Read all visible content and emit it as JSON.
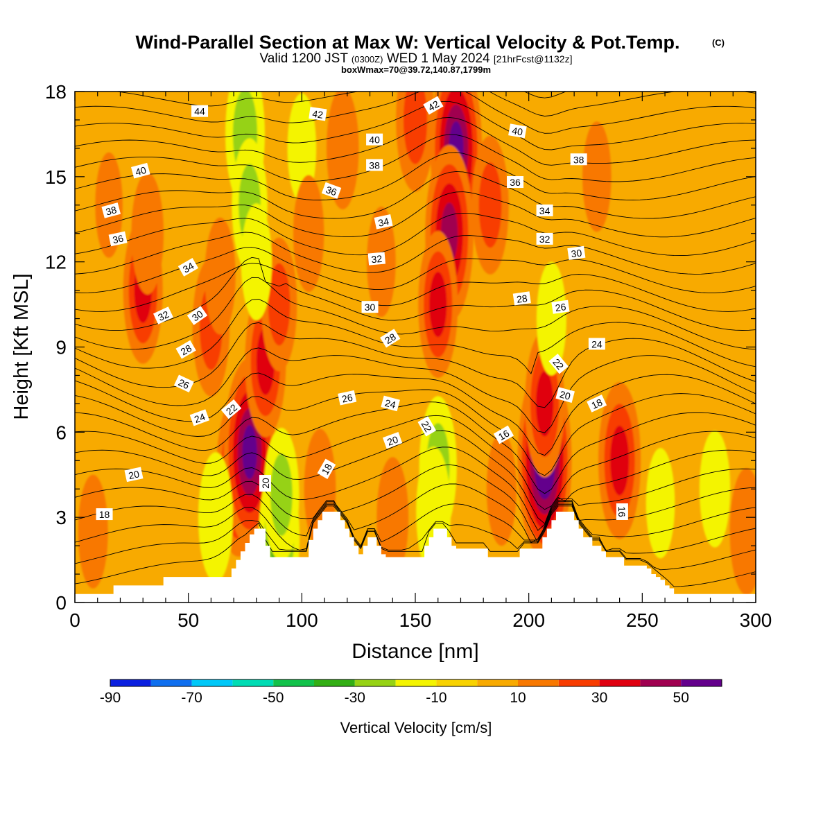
{
  "title": "Wind-Parallel Section at Max W: Vertical Velocity & Pot.Temp.",
  "copyright_mark": "(C)",
  "subtitle_parts": {
    "valid_prefix": "Valid 1200 JST",
    "utc": "(0300Z)",
    "date": "WED 1 May 2024",
    "forecast": "[21hrFcst@1132z]"
  },
  "subtitle2": "boxWmax=70@39.72,140.87,1799m",
  "chart_data": {
    "type": "heatmap",
    "xlabel": "Distance [nm]",
    "ylabel": "Height [Kft MSL]",
    "xlim": [
      0,
      300
    ],
    "ylim": [
      0,
      18
    ],
    "x_ticks": [
      0,
      50,
      100,
      150,
      200,
      250,
      300
    ],
    "y_ticks": [
      0,
      3,
      6,
      9,
      12,
      15,
      18
    ],
    "colorbar": {
      "label": "Vertical Velocity [cm/s]",
      "bounds": [
        -90,
        -80,
        -70,
        -60,
        -50,
        -40,
        -30,
        -20,
        -10,
        0,
        10,
        20,
        30,
        40,
        50,
        60
      ],
      "tick_labels": [
        "-90",
        "-70",
        "-50",
        "-30",
        "-10",
        "10",
        "30",
        "50"
      ],
      "tick_values": [
        -90,
        -70,
        -50,
        -30,
        -10,
        10,
        30,
        50
      ],
      "colors": [
        "#0b1fe0",
        "#0f6fef",
        "#00c8f8",
        "#00dcb4",
        "#12c24a",
        "#32ae14",
        "#96d214",
        "#f4f400",
        "#f8d200",
        "#f8aa00",
        "#f87800",
        "#f83c00",
        "#e00010",
        "#a00050",
        "#64008c"
      ]
    },
    "vertical_velocity_cells": [
      {
        "x": 8,
        "y": 2.5,
        "w": 10
      },
      {
        "x": 30,
        "y": 11,
        "w": 30
      },
      {
        "x": 32,
        "y": 13,
        "w": 15
      },
      {
        "x": 60,
        "y": 9.7,
        "w": 25
      },
      {
        "x": 64,
        "y": 11.5,
        "w": 12
      },
      {
        "x": 72,
        "y": 4.5,
        "w": 40
      },
      {
        "x": 77,
        "y": 5.3,
        "w": 55
      },
      {
        "x": 84,
        "y": 8.5,
        "w": 33
      },
      {
        "x": 90,
        "y": 10.5,
        "w": 22
      },
      {
        "x": 62,
        "y": 3,
        "w": -20
      },
      {
        "x": 90,
        "y": 2.3,
        "w": -33
      },
      {
        "x": 91,
        "y": 3.8,
        "w": -22
      },
      {
        "x": 75,
        "y": 16.5,
        "w": -30
      },
      {
        "x": 77,
        "y": 14,
        "w": -22
      },
      {
        "x": 80,
        "y": 12,
        "w": -12
      },
      {
        "x": 100,
        "y": 16,
        "w": -8
      },
      {
        "x": 103,
        "y": 13,
        "w": 12
      },
      {
        "x": 108,
        "y": 4,
        "w": 14
      },
      {
        "x": 118,
        "y": 16,
        "w": 15
      },
      {
        "x": 135,
        "y": 12,
        "w": 8
      },
      {
        "x": 150,
        "y": 17,
        "w": 28
      },
      {
        "x": 140,
        "y": 3,
        "w": 14
      },
      {
        "x": 160,
        "y": 4.8,
        "w": -26
      },
      {
        "x": 158,
        "y": 3.2,
        "w": -20
      },
      {
        "x": 168,
        "y": 16,
        "w": 55
      },
      {
        "x": 165,
        "y": 13,
        "w": 48
      },
      {
        "x": 160,
        "y": 10.5,
        "w": 30
      },
      {
        "x": 183,
        "y": 14,
        "w": 25
      },
      {
        "x": 188,
        "y": 4,
        "w": 10
      },
      {
        "x": 207,
        "y": 5,
        "w": 60
      },
      {
        "x": 207,
        "y": 7,
        "w": 30
      },
      {
        "x": 210,
        "y": 10,
        "w": -10
      },
      {
        "x": 240,
        "y": 5,
        "w": 36
      },
      {
        "x": 230,
        "y": 15,
        "w": 8
      },
      {
        "x": 258,
        "y": 3.5,
        "w": -8
      },
      {
        "x": 282,
        "y": 4,
        "w": -12
      },
      {
        "x": 296,
        "y": 2.5,
        "w": 18
      },
      {
        "x": 15,
        "y": 14,
        "w": 5
      }
    ],
    "terrain": {
      "x": [
        0,
        15,
        17,
        37,
        39,
        69,
        71,
        73,
        75,
        77,
        79,
        82,
        84,
        86,
        101,
        103,
        105,
        107,
        109,
        115,
        117,
        119,
        121,
        123,
        125,
        127,
        129,
        131,
        133,
        135,
        137,
        139,
        141,
        143,
        145,
        152,
        154,
        156,
        158,
        160,
        162,
        164,
        166,
        168,
        170,
        172,
        176,
        178,
        180,
        182,
        184,
        186,
        188,
        190,
        192,
        194,
        196,
        198,
        200,
        202,
        206,
        208,
        210,
        212,
        214,
        216,
        218,
        220,
        222,
        224,
        226,
        228,
        230,
        232,
        234,
        236,
        240,
        242,
        244,
        246,
        248,
        250,
        252,
        254,
        256,
        258,
        260,
        262,
        264,
        266,
        268,
        300
      ],
      "y": [
        0.3,
        0.3,
        0.6,
        0.6,
        0.9,
        1.2,
        1.5,
        1.8,
        2.1,
        2.4,
        2.6,
        2.6,
        2.0,
        1.6,
        1.6,
        2.2,
        2.6,
        2.9,
        3.2,
        3.2,
        2.9,
        2.6,
        2.3,
        2.0,
        1.7,
        2.0,
        2.3,
        2.3,
        2.0,
        1.7,
        1.6,
        1.6,
        1.6,
        1.6,
        1.6,
        1.6,
        2.0,
        2.3,
        2.6,
        2.6,
        2.6,
        2.3,
        2.0,
        1.9,
        1.9,
        1.9,
        1.9,
        1.9,
        1.9,
        1.6,
        1.6,
        1.6,
        1.6,
        1.6,
        1.6,
        1.6,
        1.9,
        1.9,
        1.9,
        1.9,
        2.3,
        2.6,
        2.9,
        3.2,
        3.2,
        3.2,
        3.2,
        2.9,
        2.6,
        2.3,
        2.3,
        2.0,
        2.0,
        1.8,
        1.6,
        1.6,
        1.6,
        1.3,
        1.3,
        1.3,
        1.3,
        1.3,
        1.2,
        1.0,
        0.9,
        0.8,
        0.6,
        0.5,
        0.3,
        0.3,
        0.3,
        0.3
      ]
    },
    "theta_labels": [
      {
        "x": 55,
        "y": 17.3,
        "t": "44",
        "a": 0
      },
      {
        "x": 107,
        "y": 17.2,
        "t": "42",
        "a": 8
      },
      {
        "x": 158,
        "y": 17.5,
        "t": "42",
        "a": -30
      },
      {
        "x": 132,
        "y": 16.3,
        "t": "40",
        "a": 0
      },
      {
        "x": 195,
        "y": 16.6,
        "t": "40",
        "a": 10
      },
      {
        "x": 29,
        "y": 15.2,
        "t": "40",
        "a": -15
      },
      {
        "x": 222,
        "y": 15.6,
        "t": "38",
        "a": 0
      },
      {
        "x": 132,
        "y": 15.4,
        "t": "38",
        "a": 0
      },
      {
        "x": 16,
        "y": 13.8,
        "t": "38",
        "a": -15
      },
      {
        "x": 194,
        "y": 14.8,
        "t": "36",
        "a": 0
      },
      {
        "x": 113,
        "y": 14.5,
        "t": "36",
        "a": 20
      },
      {
        "x": 19,
        "y": 12.8,
        "t": "36",
        "a": -12
      },
      {
        "x": 207,
        "y": 13.8,
        "t": "34",
        "a": 0
      },
      {
        "x": 136,
        "y": 13.4,
        "t": "34",
        "a": -12
      },
      {
        "x": 50,
        "y": 11.8,
        "t": "34",
        "a": -30
      },
      {
        "x": 207,
        "y": 12.8,
        "t": "32",
        "a": 0
      },
      {
        "x": 133,
        "y": 12.1,
        "t": "32",
        "a": -5
      },
      {
        "x": 39,
        "y": 10.1,
        "t": "32",
        "a": -25
      },
      {
        "x": 221,
        "y": 12.3,
        "t": "30",
        "a": -8
      },
      {
        "x": 130,
        "y": 10.4,
        "t": "30",
        "a": 0
      },
      {
        "x": 54,
        "y": 10.1,
        "t": "30",
        "a": -35
      },
      {
        "x": 197,
        "y": 10.7,
        "t": "28",
        "a": -8
      },
      {
        "x": 139,
        "y": 9.3,
        "t": "28",
        "a": -32
      },
      {
        "x": 49,
        "y": 8.9,
        "t": "28",
        "a": -30
      },
      {
        "x": 214,
        "y": 10.4,
        "t": "26",
        "a": -8
      },
      {
        "x": 120,
        "y": 7.2,
        "t": "26",
        "a": -12
      },
      {
        "x": 48,
        "y": 7.7,
        "t": "26",
        "a": 25
      },
      {
        "x": 230,
        "y": 9.1,
        "t": "24",
        "a": 0
      },
      {
        "x": 139,
        "y": 7.0,
        "t": "24",
        "a": 15
      },
      {
        "x": 55,
        "y": 6.5,
        "t": "24",
        "a": -20
      },
      {
        "x": 213,
        "y": 8.4,
        "t": "22",
        "a": 50
      },
      {
        "x": 155,
        "y": 6.2,
        "t": "22",
        "a": 60
      },
      {
        "x": 69,
        "y": 6.8,
        "t": "22",
        "a": -40
      },
      {
        "x": 216,
        "y": 7.3,
        "t": "20",
        "a": 15
      },
      {
        "x": 140,
        "y": 5.7,
        "t": "20",
        "a": -20
      },
      {
        "x": 84,
        "y": 4.2,
        "t": "20",
        "a": -90
      },
      {
        "x": 26,
        "y": 4.5,
        "t": "20",
        "a": -12
      },
      {
        "x": 230,
        "y": 7.0,
        "t": "18",
        "a": -25
      },
      {
        "x": 111,
        "y": 4.7,
        "t": "18",
        "a": -60
      },
      {
        "x": 13,
        "y": 3.1,
        "t": "18",
        "a": 0
      },
      {
        "x": 189,
        "y": 5.9,
        "t": "16",
        "a": -30
      },
      {
        "x": 241,
        "y": 3.2,
        "t": "16",
        "a": 90
      }
    ]
  }
}
